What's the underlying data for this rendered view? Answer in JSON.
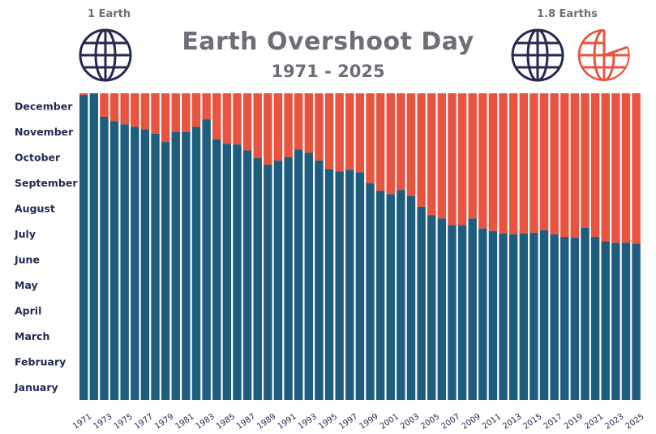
{
  "header": {
    "title": "Earth Overshoot Day",
    "subtitle": "1971 - 2025",
    "left_label": "1 Earth",
    "right_label": "1.8 Earths"
  },
  "colors": {
    "bar": "#1f5d7e",
    "overshoot": "#e8543f",
    "globe_left": "#232a52",
    "globe_partial": "#e8543f",
    "text": "#232a52",
    "title": "#6d6e78"
  },
  "icons": [
    "globe-icon",
    "globe-icon",
    "partial-globe-icon"
  ],
  "chart_data": {
    "type": "bar",
    "title": "Earth Overshoot Day",
    "subtitle": "1971 - 2025",
    "x": [
      1971,
      1972,
      1973,
      1974,
      1975,
      1976,
      1977,
      1978,
      1979,
      1980,
      1981,
      1982,
      1983,
      1984,
      1985,
      1986,
      1987,
      1988,
      1989,
      1990,
      1991,
      1992,
      1993,
      1994,
      1995,
      1996,
      1997,
      1998,
      1999,
      2000,
      2001,
      2002,
      2003,
      2004,
      2005,
      2006,
      2007,
      2008,
      2009,
      2010,
      2011,
      2012,
      2013,
      2014,
      2015,
      2016,
      2017,
      2018,
      2019,
      2020,
      2021,
      2022,
      2023,
      2024,
      2025
    ],
    "x_tick_labels": [
      "1971",
      "1973",
      "1975",
      "1977",
      "1979",
      "1981",
      "1983",
      "1985",
      "1987",
      "1989",
      "1991",
      "1993",
      "1995",
      "1997",
      "1999",
      "2001",
      "2003",
      "2005",
      "2007",
      "2009",
      "2011",
      "2013",
      "2015",
      "2017",
      "2019",
      "2021",
      "2023",
      "2025"
    ],
    "y_unit": "day of year",
    "y_tick_labels": [
      "January",
      "February",
      "March",
      "April",
      "May",
      "June",
      "July",
      "August",
      "September",
      "October",
      "November",
      "December"
    ],
    "ylim": [
      1,
      365
    ],
    "values": [
      363,
      365,
      337,
      332,
      328,
      325,
      322,
      317,
      307,
      319,
      319,
      325,
      334,
      310,
      305,
      304,
      297,
      288,
      280,
      285,
      289,
      298,
      294,
      285,
      275,
      272,
      274,
      271,
      258,
      249,
      245,
      250,
      243,
      230,
      220,
      216,
      208,
      208,
      216,
      204,
      201,
      198,
      197,
      198,
      199,
      202,
      197,
      194,
      193,
      205,
      194,
      189,
      187,
      187,
      186
    ]
  }
}
